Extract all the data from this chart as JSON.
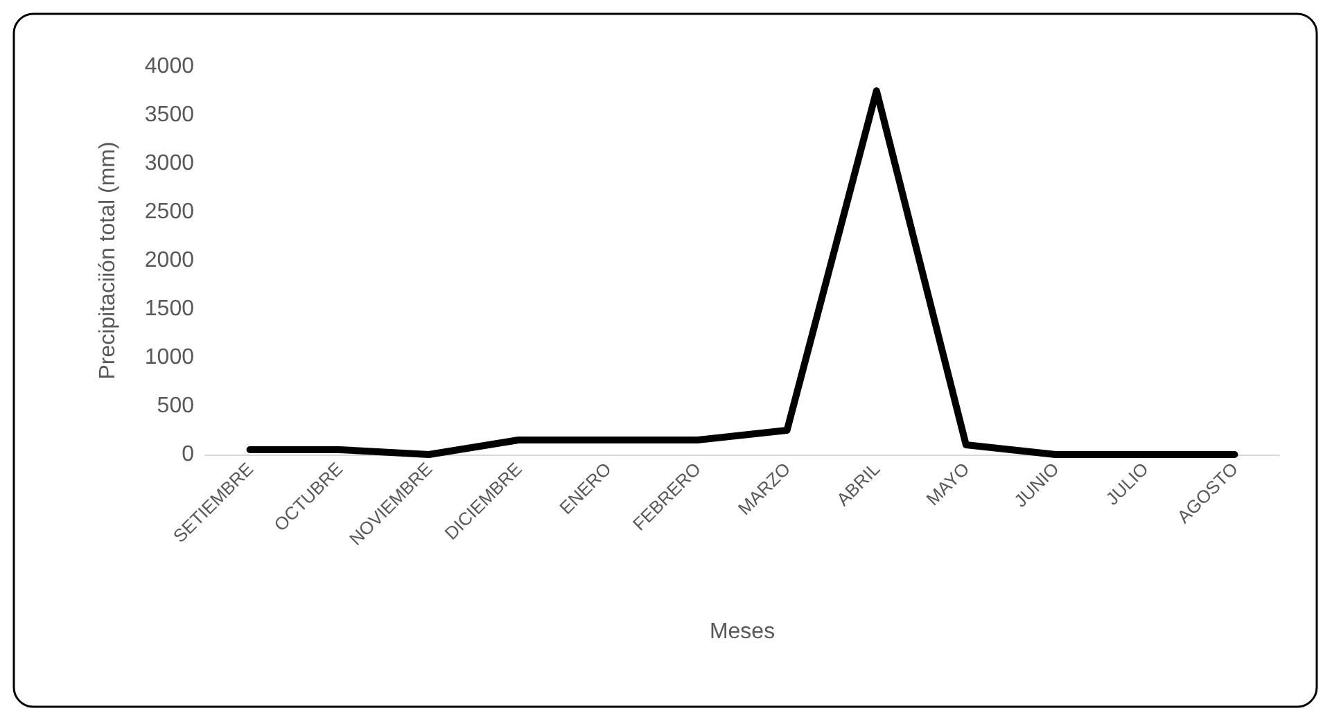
{
  "chart_data": {
    "type": "line",
    "xlabel": "Meses",
    "ylabel": "Precipitaciión total (mm)",
    "categories": [
      "SETIEMBRE",
      "OCTUBRE",
      "NOVIEMBRE",
      "DICIEMBRE",
      "ENERO",
      "FEBRERO",
      "MARZO",
      "ABRIL",
      "MAYO",
      "JUNIO",
      "JULIO",
      "AGOSTO"
    ],
    "series": [
      {
        "color": "#000000",
        "values": [
          50,
          50,
          0,
          150,
          150,
          150,
          250,
          3750,
          100,
          0,
          0,
          0
        ]
      }
    ],
    "ylim": [
      0,
      4000
    ],
    "yticks": [
      0,
      500,
      1000,
      1500,
      2000,
      2500,
      3000,
      3500,
      4000
    ],
    "grid": false,
    "marker": "none",
    "line_style": "solid"
  }
}
